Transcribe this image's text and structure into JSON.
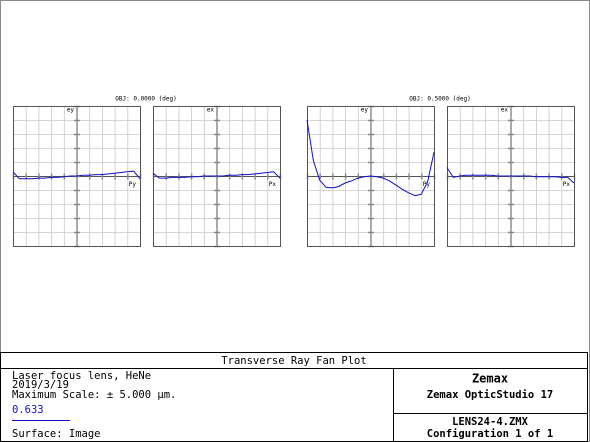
{
  "chart_data": [
    {
      "type": "line",
      "title": "OBJ: 0.0000 (deg)",
      "y_label": "ey",
      "x_label": "Py",
      "x": [
        -1,
        -0.9,
        -0.8,
        -0.7,
        -0.6,
        -0.5,
        -0.4,
        -0.3,
        -0.2,
        -0.1,
        0,
        0.1,
        0.2,
        0.3,
        0.4,
        0.5,
        0.6,
        0.7,
        0.8,
        0.9,
        1
      ],
      "series": [
        {
          "color": "#1010c8",
          "values": [
            0.3,
            -0.2,
            -0.2,
            -0.2,
            -0.15,
            -0.15,
            -0.1,
            -0.1,
            -0.05,
            0,
            0,
            0.05,
            0.05,
            0.1,
            0.1,
            0.15,
            0.2,
            0.25,
            0.3,
            0.35,
            -0.2
          ]
        }
      ],
      "xlim": [
        -1,
        1
      ],
      "ylim": [
        -5,
        5
      ],
      "xticks": [
        -1,
        -0.8,
        -0.6,
        -0.4,
        -0.2,
        0,
        0.2,
        0.4,
        0.6,
        0.8,
        1
      ],
      "yticks": [
        -5,
        -4,
        -3,
        -2,
        -1,
        0,
        1,
        2,
        3,
        4,
        5
      ],
      "grid": true
    },
    {
      "type": "line",
      "y_label": "ex",
      "x_label": "Px",
      "x": [
        -1,
        -0.9,
        -0.8,
        -0.7,
        -0.6,
        -0.5,
        -0.4,
        -0.3,
        -0.2,
        -0.1,
        0,
        0.1,
        0.2,
        0.3,
        0.4,
        0.5,
        0.6,
        0.7,
        0.8,
        0.9,
        1
      ],
      "series": [
        {
          "color": "#1010c8",
          "values": [
            0.2,
            -0.15,
            -0.15,
            -0.1,
            -0.1,
            -0.1,
            -0.05,
            -0.05,
            0,
            0,
            0,
            0,
            0.05,
            0.05,
            0.1,
            0.1,
            0.15,
            0.2,
            0.25,
            0.3,
            -0.15
          ]
        }
      ],
      "xlim": [
        -1,
        1
      ],
      "ylim": [
        -5,
        5
      ],
      "xticks": [
        -1,
        -0.8,
        -0.6,
        -0.4,
        -0.2,
        0,
        0.2,
        0.4,
        0.6,
        0.8,
        1
      ],
      "yticks": [
        -5,
        -4,
        -3,
        -2,
        -1,
        0,
        1,
        2,
        3,
        4,
        5
      ],
      "grid": true
    },
    {
      "type": "line",
      "title": "OBJ: 0.5000 (deg)",
      "y_label": "ey",
      "x_label": "Py",
      "x": [
        -1,
        -0.9,
        -0.8,
        -0.7,
        -0.6,
        -0.5,
        -0.4,
        -0.3,
        -0.2,
        -0.1,
        0,
        0.1,
        0.2,
        0.3,
        0.4,
        0.5,
        0.6,
        0.7,
        0.8,
        0.9,
        1
      ],
      "series": [
        {
          "color": "#1010c8",
          "values": [
            4.0,
            1.1,
            -0.3,
            -0.8,
            -0.85,
            -0.75,
            -0.5,
            -0.35,
            -0.15,
            -0.05,
            0,
            -0.05,
            -0.15,
            -0.35,
            -0.65,
            -0.95,
            -1.2,
            -1.4,
            -1.3,
            -0.4,
            1.7
          ]
        }
      ],
      "xlim": [
        -1,
        1
      ],
      "ylim": [
        -5,
        5
      ],
      "xticks": [
        -1,
        -0.8,
        -0.6,
        -0.4,
        -0.2,
        0,
        0.2,
        0.4,
        0.6,
        0.8,
        1
      ],
      "yticks": [
        -5,
        -4,
        -3,
        -2,
        -1,
        0,
        1,
        2,
        3,
        4,
        5
      ],
      "grid": true
    },
    {
      "type": "line",
      "y_label": "ex",
      "x_label": "Px",
      "x": [
        -1,
        -0.9,
        -0.8,
        -0.7,
        -0.6,
        -0.5,
        -0.4,
        -0.3,
        -0.2,
        -0.1,
        0,
        0.1,
        0.2,
        0.3,
        0.4,
        0.5,
        0.6,
        0.7,
        0.8,
        0.9,
        1
      ],
      "series": [
        {
          "color": "#1010c8",
          "values": [
            0.6,
            -0.1,
            0,
            0.05,
            0.05,
            0.05,
            0.05,
            0.05,
            0,
            0,
            0,
            0,
            0,
            0,
            -0.05,
            -0.05,
            -0.05,
            -0.05,
            -0.1,
            -0.1,
            -0.5
          ]
        }
      ],
      "xlim": [
        -1,
        1
      ],
      "ylim": [
        -5,
        5
      ],
      "xticks": [
        -1,
        -0.8,
        -0.6,
        -0.4,
        -0.2,
        0,
        0.2,
        0.4,
        0.6,
        0.8,
        1
      ],
      "yticks": [
        -5,
        -4,
        -3,
        -2,
        -1,
        0,
        1,
        2,
        3,
        4,
        5
      ],
      "grid": true
    }
  ],
  "footer": {
    "plot_title": "Transverse Ray Fan Plot",
    "lens_name": "Laser focus lens, HeNe",
    "date": "2019/3/19",
    "scale": "Maximum Scale: ± 5.000 µm.",
    "wavelength": "0.633",
    "surface": "Surface: Image",
    "company": "Zemax",
    "product": "Zemax OpticStudio 17",
    "file": "LENS24-4.ZMX",
    "configuration": "Configuration 1 of 1"
  }
}
